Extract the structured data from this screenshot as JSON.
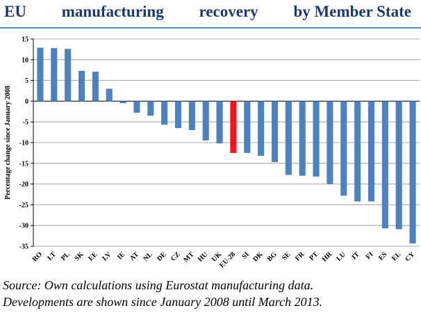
{
  "title_words": [
    "EU",
    "manufacturing",
    "recovery",
    "by Member State"
  ],
  "source_lines": [
    "Source: Own calculations using Eurostat manufacturing data.",
    "Developments are shown since January 2008 until March 2013."
  ],
  "colors": {
    "bar": "#4f81bd",
    "highlight": "#e41a1c",
    "title": "#1f3864",
    "grid": "#8c8c8c"
  },
  "chart_data": {
    "type": "bar",
    "title": "EU manufacturing recovery by Member State",
    "ylabel": "Percentage change since January 2008",
    "xlabel": "",
    "ylim": [
      -35,
      15
    ],
    "yticks": [
      15,
      10,
      5,
      0,
      -5,
      -10,
      -15,
      -20,
      -25,
      -30,
      -35
    ],
    "grid": true,
    "highlight_category": "EU-28",
    "categories": [
      "RO",
      "LT",
      "PL",
      "SK",
      "EE",
      "LV",
      "IE",
      "AT",
      "NL",
      "DE",
      "CZ",
      "MT",
      "HU",
      "UK",
      "EU-28",
      "SI",
      "DK",
      "BG",
      "SE",
      "FR",
      "PT",
      "HR",
      "LU",
      "IT",
      "FI",
      "ES",
      "EL",
      "CY"
    ],
    "values": [
      12.9,
      12.8,
      12.6,
      7.3,
      7.1,
      3.0,
      -0.5,
      -2.8,
      -3.5,
      -5.7,
      -6.5,
      -7.0,
      -9.5,
      -10.2,
      -12.5,
      -12.5,
      -13.2,
      -14.7,
      -17.8,
      -18.0,
      -18.2,
      -20.0,
      -22.8,
      -24.2,
      -24.2,
      -30.7,
      -30.9,
      -34.3
    ]
  }
}
